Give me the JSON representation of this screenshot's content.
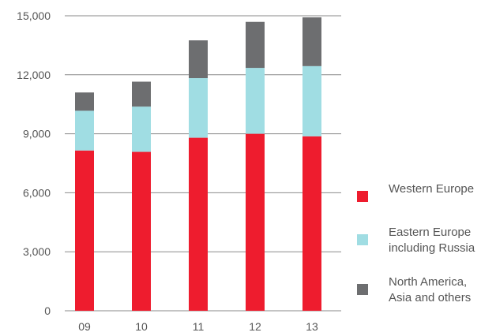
{
  "chart_data": {
    "type": "bar",
    "stacked": true,
    "categories": [
      "09",
      "10",
      "11",
      "12",
      "13"
    ],
    "series": [
      {
        "name": "Western Europe",
        "color": "#ee1c2e",
        "values": [
          8150,
          8080,
          8800,
          9000,
          8870
        ]
      },
      {
        "name": "Eastern Europe\nincluding Russia",
        "color": "#a0dde3",
        "values": [
          2020,
          2300,
          3030,
          3350,
          3570
        ]
      },
      {
        "name": "North America,\nAsia and others",
        "color": "#6d6e70",
        "values": [
          930,
          1270,
          1920,
          2340,
          2480
        ]
      }
    ],
    "yticks": [
      "0",
      "3,000",
      "6,000",
      "9,000",
      "12,000",
      "15,000"
    ],
    "ylim": [
      0,
      15000
    ],
    "title": "",
    "xlabel": "",
    "ylabel": "",
    "grid": "horizontal",
    "legend_position": "right"
  }
}
